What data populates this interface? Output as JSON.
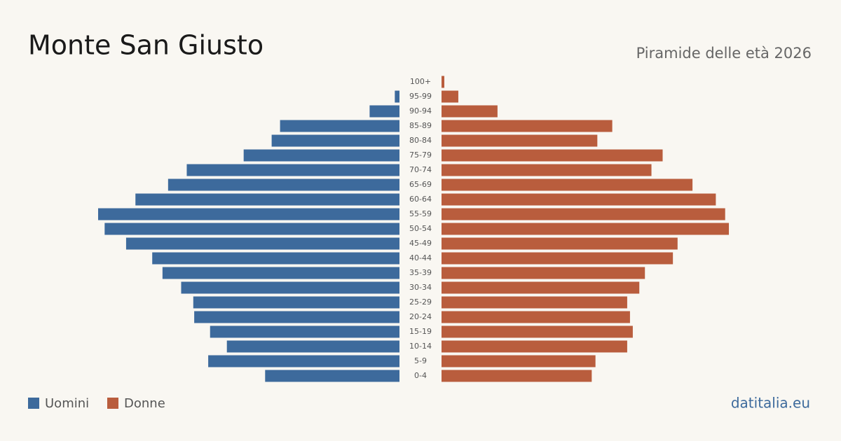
{
  "chart_data": {
    "type": "pyramid",
    "title": "Monte San Giusto",
    "subtitle": "Piramide delle età 2026",
    "source": "datitalia.eu",
    "categories": [
      "100+",
      "95-99",
      "90-94",
      "85-89",
      "80-84",
      "75-79",
      "70-74",
      "65-69",
      "60-64",
      "55-59",
      "50-54",
      "45-49",
      "40-44",
      "35-39",
      "30-34",
      "25-29",
      "20-24",
      "15-19",
      "10-14",
      "5-9",
      "0-4"
    ],
    "series": [
      {
        "name": "Uomini",
        "color": "#3d6a9c",
        "values": [
          0,
          5,
          32,
          128,
          137,
          167,
          228,
          248,
          283,
          323,
          316,
          293,
          265,
          254,
          234,
          221,
          220,
          203,
          185,
          205,
          144
        ]
      },
      {
        "name": "Donne",
        "color": "#b95d3d",
        "values": [
          3,
          18,
          60,
          183,
          167,
          237,
          225,
          269,
          294,
          304,
          308,
          253,
          248,
          218,
          212,
          199,
          202,
          205,
          199,
          165,
          161
        ]
      }
    ]
  }
}
